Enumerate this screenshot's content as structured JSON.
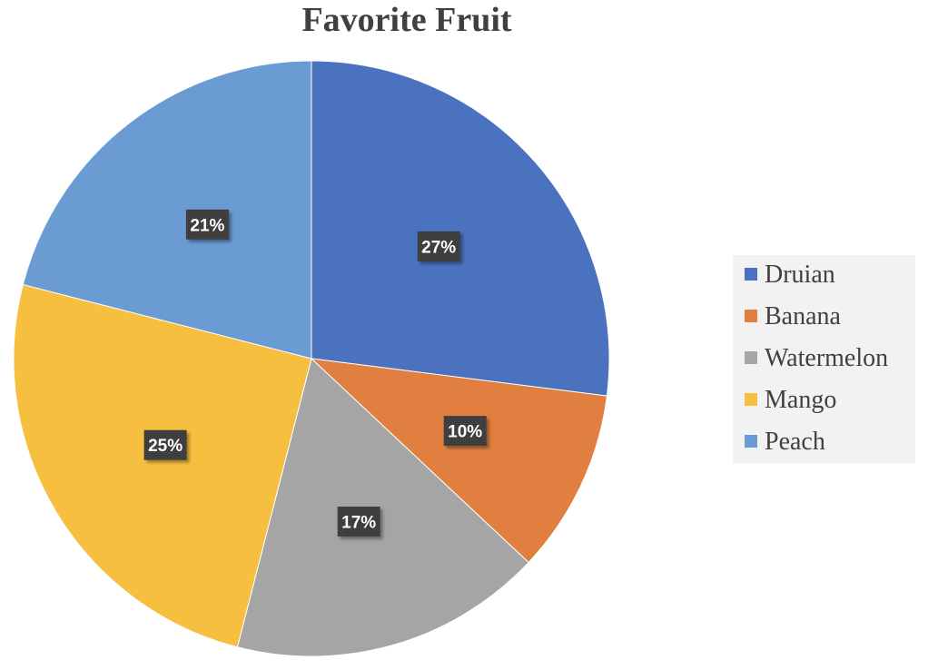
{
  "chart_data": {
    "type": "pie",
    "title": "Favorite Fruit",
    "categories": [
      "Druian",
      "Banana",
      "Watermelon",
      "Mango",
      "Peach"
    ],
    "values": [
      27,
      10,
      17,
      25,
      21
    ],
    "labels": [
      "27%",
      "10%",
      "17%",
      "25%",
      "21%"
    ],
    "colors": [
      "#4a72be",
      "#e07f3f",
      "#a5a5a5",
      "#f6bf40",
      "#6a9bd3"
    ],
    "legend_position": "right",
    "start_angle": "12 o'clock",
    "direction": "clockwise"
  }
}
